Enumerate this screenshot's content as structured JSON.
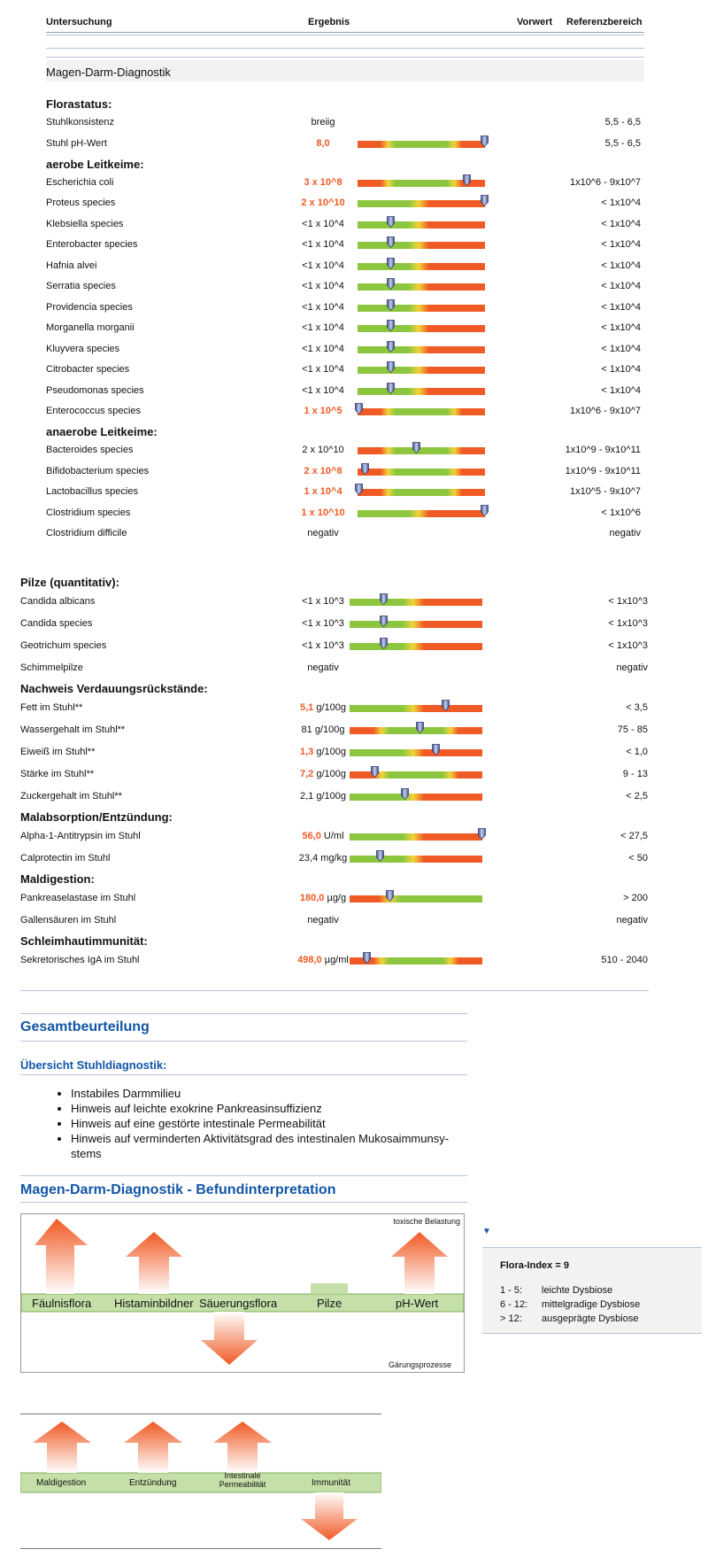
{
  "header": {
    "col_exam": "Untersuchung",
    "col_result": "Ergebnis",
    "col_prev": "Vorwert",
    "col_ref": "Referenzbereich"
  },
  "section_title": "Magen-Darm-Diagnostik",
  "groups1": [
    {
      "title": "Florastatus:",
      "rows": [
        {
          "name": "Stuhlkonsistenz",
          "value": "breiig",
          "flag": false,
          "ref": "5,5 - 6,5",
          "bar": null
        },
        {
          "name": "Stuhl pH-Wert",
          "value": "8,0",
          "flag": true,
          "ref": "5,5 - 6,5",
          "bar": {
            "type": "rgr",
            "pos": 1.0
          }
        }
      ]
    },
    {
      "title": "aerobe Leitkeime:",
      "rows": [
        {
          "name": "Escherichia coli",
          "value": "3 x 10^8",
          "flag": true,
          "ref": "1x10^6 - 9x10^7",
          "bar": {
            "type": "rgr",
            "pos": 0.86
          }
        },
        {
          "name": "Proteus species",
          "value": "2 x 10^10",
          "flag": true,
          "ref": "< 1x10^4",
          "bar": {
            "type": "gr",
            "pos": 1.0
          }
        },
        {
          "name": "Klebsiella species",
          "value": "<1 x 10^4",
          "flag": false,
          "ref": "< 1x10^4",
          "bar": {
            "type": "gr",
            "pos": 0.25
          }
        },
        {
          "name": "Enterobacter species",
          "value": "<1 x 10^4",
          "flag": false,
          "ref": "< 1x10^4",
          "bar": {
            "type": "gr",
            "pos": 0.25
          }
        },
        {
          "name": "Hafnia alvei",
          "value": "<1 x 10^4",
          "flag": false,
          "ref": "< 1x10^4",
          "bar": {
            "type": "gr",
            "pos": 0.25
          }
        },
        {
          "name": "Serratia species",
          "value": "<1 x 10^4",
          "flag": false,
          "ref": "< 1x10^4",
          "bar": {
            "type": "gr",
            "pos": 0.25
          }
        },
        {
          "name": "Providencia species",
          "value": "<1 x 10^4",
          "flag": false,
          "ref": "< 1x10^4",
          "bar": {
            "type": "gr",
            "pos": 0.25
          }
        },
        {
          "name": "Morganella morganii",
          "value": "<1 x 10^4",
          "flag": false,
          "ref": "< 1x10^4",
          "bar": {
            "type": "gr",
            "pos": 0.25
          }
        },
        {
          "name": "Kluyvera species",
          "value": "<1 x 10^4",
          "flag": false,
          "ref": "< 1x10^4",
          "bar": {
            "type": "gr",
            "pos": 0.25
          }
        },
        {
          "name": "Citrobacter species",
          "value": "<1 x 10^4",
          "flag": false,
          "ref": "< 1x10^4",
          "bar": {
            "type": "gr",
            "pos": 0.25
          }
        },
        {
          "name": "Pseudomonas species",
          "value": "<1 x 10^4",
          "flag": false,
          "ref": "< 1x10^4",
          "bar": {
            "type": "gr",
            "pos": 0.25
          }
        },
        {
          "name": "Enterococcus species",
          "value": "1 x 10^5",
          "flag": true,
          "ref": "1x10^6 - 9x10^7",
          "bar": {
            "type": "rgr",
            "pos": 0.0
          }
        }
      ]
    },
    {
      "title": "anaerobe Leitkeime:",
      "rows": [
        {
          "name": "Bacteroides species",
          "value": "2 x 10^10",
          "flag": false,
          "ref": "1x10^9 - 9x10^11",
          "bar": {
            "type": "rgr",
            "pos": 0.46
          }
        },
        {
          "name": "Bifidobacterium species",
          "value": "2 x 10^8",
          "flag": true,
          "ref": "1x10^9 - 9x10^11",
          "bar": {
            "type": "rgr",
            "pos": 0.05
          }
        },
        {
          "name": "Lactobacillus species",
          "value": "1 x 10^4",
          "flag": true,
          "ref": "1x10^5 - 9x10^7",
          "bar": {
            "type": "rgr",
            "pos": 0.0
          }
        },
        {
          "name": "Clostridium species",
          "value": "1 x 10^10",
          "flag": true,
          "ref": "< 1x10^6",
          "bar": {
            "type": "gr",
            "pos": 1.0
          }
        },
        {
          "name": "Clostridium difficile",
          "value": "negativ",
          "flag": false,
          "ref": "negativ",
          "bar": null
        }
      ]
    }
  ],
  "groups2": [
    {
      "title": "Pilze (quantitativ):",
      "rows": [
        {
          "name": "Candida albicans",
          "value": "<1 x 10^3",
          "flag": false,
          "unit": "",
          "ref": "< 1x10^3",
          "bar": {
            "type": "gr",
            "pos": 0.25
          }
        },
        {
          "name": "Candida species",
          "value": "<1 x 10^3",
          "flag": false,
          "unit": "",
          "ref": "< 1x10^3",
          "bar": {
            "type": "gr",
            "pos": 0.25
          }
        },
        {
          "name": "Geotrichum species",
          "value": "<1 x 10^3",
          "flag": false,
          "unit": "",
          "ref": "< 1x10^3",
          "bar": {
            "type": "gr",
            "pos": 0.25
          }
        },
        {
          "name": "Schimmelpilze",
          "value": "negativ",
          "flag": false,
          "unit": "",
          "ref": "negativ",
          "bar": null
        }
      ]
    },
    {
      "title": "Nachweis Verdauungsrückstände:",
      "rows": [
        {
          "name": "Fett im Stuhl**",
          "value": "5,1",
          "flag": true,
          "unit": " g/100g",
          "ref": "< 3,5",
          "bar": {
            "type": "gr",
            "pos": 0.72
          }
        },
        {
          "name": "Wassergehalt im Stuhl**",
          "value": "81",
          "flag": false,
          "unit": " g/100g",
          "ref": "75 - 85",
          "bar": {
            "type": "rgr",
            "pos": 0.53
          }
        },
        {
          "name": "Eiweiß im Stuhl**",
          "value": "1,3",
          "flag": true,
          "unit": " g/100g",
          "ref": "< 1,0",
          "bar": {
            "type": "gr",
            "pos": 0.65
          }
        },
        {
          "name": "Stärke im Stuhl**",
          "value": "7,2",
          "flag": true,
          "unit": " g/100g",
          "ref": "9 - 13",
          "bar": {
            "type": "rgr",
            "pos": 0.18
          }
        },
        {
          "name": "Zuckergehalt im Stuhl**",
          "value": "2,1",
          "flag": false,
          "unit": " g/100g",
          "ref": "< 2,5",
          "bar": {
            "type": "gr",
            "pos": 0.41
          }
        }
      ]
    },
    {
      "title": "Malabsorption/Entzündung:",
      "rows": [
        {
          "name": "Alpha-1-Antitrypsin im Stuhl",
          "value": "56,0",
          "flag": true,
          "unit": " U/ml",
          "ref": "< 27,5",
          "bar": {
            "type": "gr",
            "pos": 1.0
          }
        },
        {
          "name": "Calprotectin im Stuhl",
          "value": "23,4",
          "flag": false,
          "unit": " mg/kg",
          "ref": "< 50",
          "bar": {
            "type": "gr",
            "pos": 0.22
          }
        }
      ]
    },
    {
      "title": "Maldigestion:",
      "rows": [
        {
          "name": "Pankreaselastase im Stuhl",
          "value": "180,0",
          "flag": true,
          "unit": " µg/g",
          "ref": "> 200",
          "bar": {
            "type": "rg",
            "pos": 0.3
          }
        },
        {
          "name": "Gallensäuren im Stuhl",
          "value": "negativ",
          "flag": false,
          "unit": "",
          "ref": "negativ",
          "bar": null
        }
      ]
    },
    {
      "title": "Schleimhautimmunität:",
      "rows": [
        {
          "name": "Sekretorisches IgA im Stuhl",
          "value": "498,0",
          "flag": true,
          "unit": " µg/ml",
          "ref": "510 - 2040",
          "bar": {
            "type": "rgr",
            "pos": 0.12
          }
        }
      ]
    }
  ],
  "summary": {
    "title": "Gesamtbeurteilung",
    "subtitle": "Übersicht Stuhldiagnostik:",
    "items": [
      "Instabiles Darmmilieu",
      "Hinweis auf leichte exokrine Pankreasinsuffizienz",
      "Hinweis auf eine gestörte intestinale Permeabilität",
      "Hinweis auf verminderten Aktivitätsgrad des intestinalen Mukosaimmunsy- stems"
    ]
  },
  "interp": {
    "title": "Magen-Darm-Diagnostik - Befundinterpretation",
    "top_label": "toxische Belastung",
    "bottom_label": "Gärungsprozesse",
    "bands": [
      "Fäulnisflora",
      "Histaminbildner",
      "Säuerungsflora",
      "Pilze",
      "pH-Wert"
    ],
    "bands2": [
      "Maldigestion",
      "Entzündung",
      "Intestinale Permeabilität",
      "Immunität"
    ]
  },
  "flora_index": {
    "title": "Flora-Index = 9",
    "rows": [
      [
        "1 - 5:",
        "leichte Dysbiose"
      ],
      [
        "6 - 12:",
        "mittelgradige Dysbiose"
      ],
      [
        "> 12:",
        "ausgeprägte Dysbiose"
      ]
    ]
  }
}
